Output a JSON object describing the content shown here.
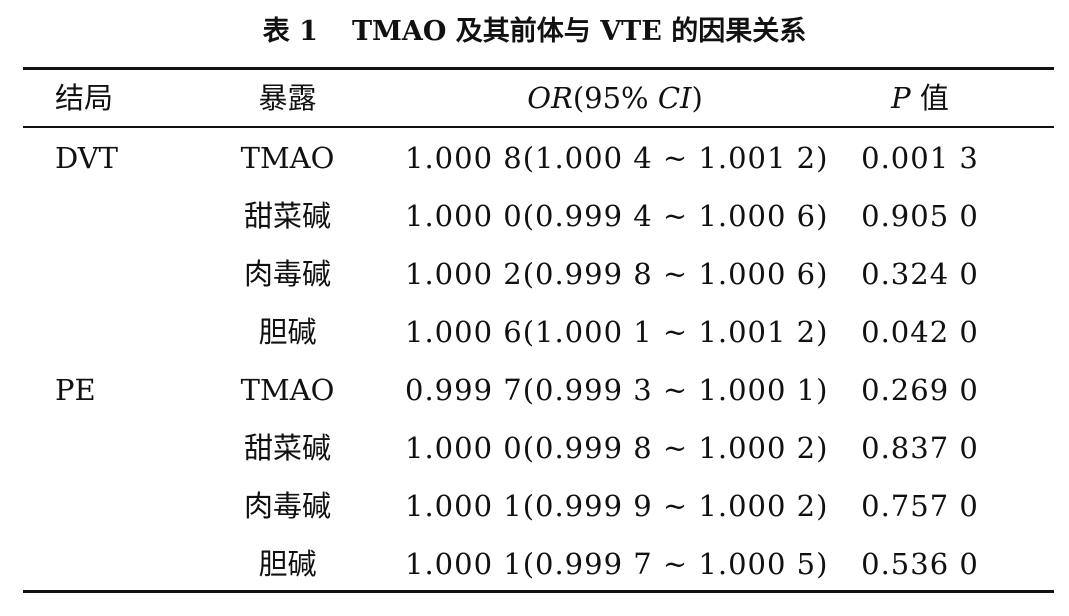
{
  "caption": {
    "number": "表 1",
    "text": "TMAO 及其前体与 VTE 的因果关系"
  },
  "table": {
    "headers": {
      "outcome": "结局",
      "exposure": "暴露",
      "or_prefix": "OR",
      "or_mid": "(95%",
      "or_ci": "CI",
      "or_suffix": ")",
      "p_prefix": "P",
      "p_suffix": " 值"
    },
    "rows": [
      {
        "outcome": "DVT",
        "exposure": "TMAO",
        "or": "1.000 8(1.000 4 ~ 1.001 2)",
        "p": "0.001 3"
      },
      {
        "outcome": "",
        "exposure": "甜菜碱",
        "or": "1.000 0(0.999 4 ~ 1.000 6)",
        "p": "0.905 0"
      },
      {
        "outcome": "",
        "exposure": "肉毒碱",
        "or": "1.000 2(0.999 8 ~ 1.000 6)",
        "p": "0.324 0"
      },
      {
        "outcome": "",
        "exposure": "胆碱",
        "or": "1.000 6(1.000 1 ~ 1.001 2)",
        "p": "0.042 0"
      },
      {
        "outcome": "PE",
        "exposure": "TMAO",
        "or": "0.999 7(0.999 3 ~ 1.000 1)",
        "p": "0.269 0"
      },
      {
        "outcome": "",
        "exposure": "甜菜碱",
        "or": "1.000 0(0.999 8 ~ 1.000 2)",
        "p": "0.837 0"
      },
      {
        "outcome": "",
        "exposure": "肉毒碱",
        "or": "1.000 1(0.999 9 ~ 1.000 2)",
        "p": "0.757 0"
      },
      {
        "outcome": "",
        "exposure": "胆碱",
        "or": "1.000 1(0.999 7 ~ 1.000 5)",
        "p": "0.536 0"
      }
    ]
  }
}
